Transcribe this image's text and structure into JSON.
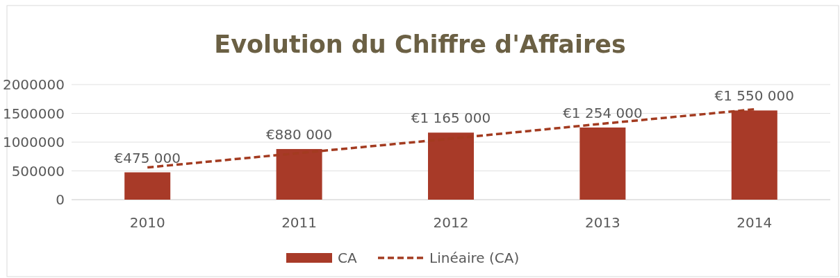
{
  "chart_data": {
    "type": "bar",
    "title": "Evolution du Chiffre d'Affaires",
    "categories": [
      "2010",
      "2011",
      "2012",
      "2013",
      "2014"
    ],
    "series": [
      {
        "name": "CA",
        "color": "#a83a28",
        "values": [
          475000,
          880000,
          1165000,
          1254000,
          1550000
        ],
        "value_labels": [
          "€475 000",
          "€880 000",
          "€1 165 000",
          "€1 254 000",
          "€1 550 000"
        ]
      },
      {
        "name": "Linéaire (CA)",
        "type": "line",
        "color": "#a33b20",
        "line_style": "dashed",
        "marker": "none",
        "values": [
          560000,
          810000,
          1060000,
          1320000,
          1570000
        ]
      }
    ],
    "ylim": [
      0,
      2000000
    ],
    "yticks": [
      0,
      500000,
      1000000,
      1500000,
      2000000
    ],
    "grid": "y",
    "legend": "bottom"
  }
}
